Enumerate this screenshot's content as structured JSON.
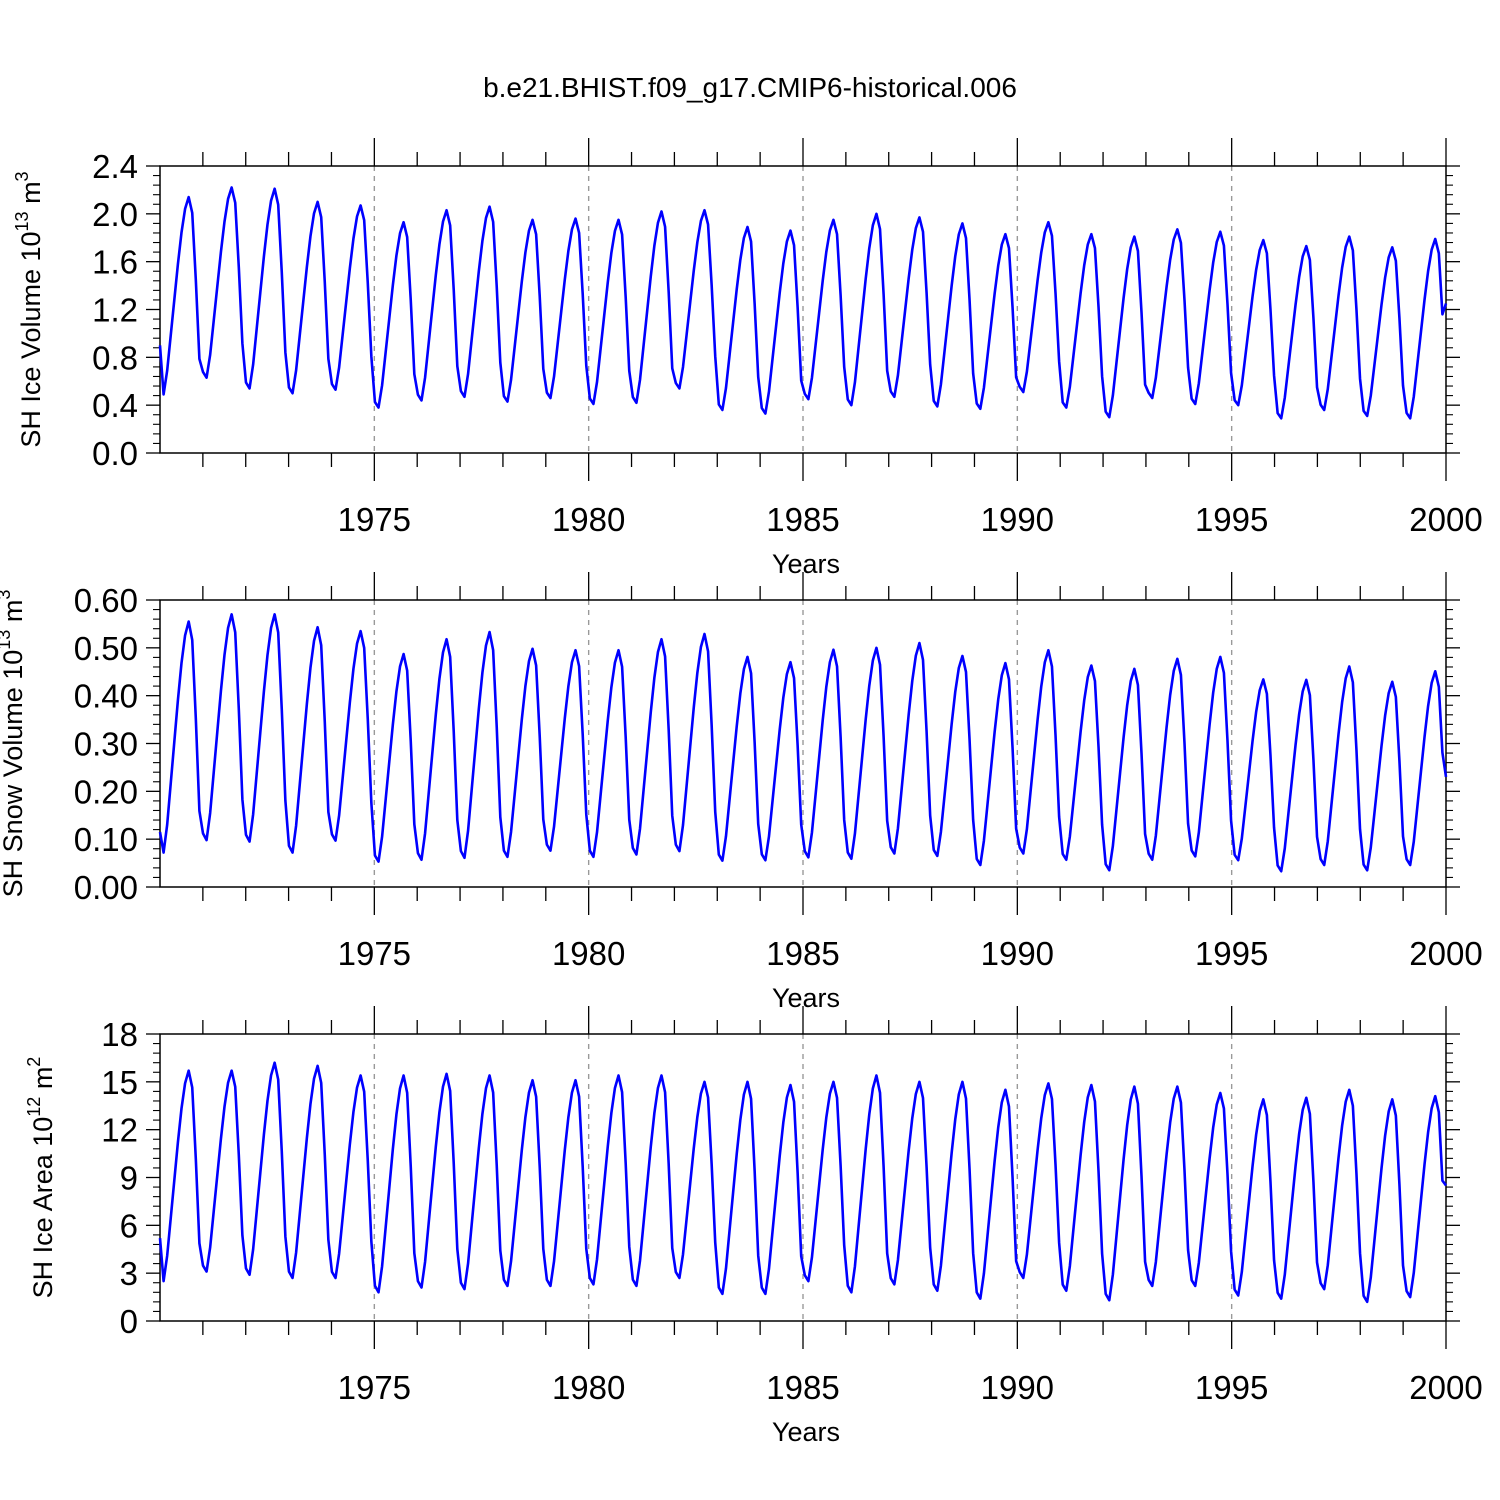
{
  "title": "b.e21.BHIST.f09_g17.CMIP6-historical.006",
  "colors": {
    "line": "#0000ff",
    "axis": "#000000",
    "grid": "#999999"
  },
  "chart_data": [
    {
      "type": "line",
      "title": "b.e21.BHIST.f09_g17.CMIP6-historical.006",
      "xlabel": "Years",
      "ylabel": "SH Ice Volume 10",
      "ylabel_sup": "13",
      "ylabel_unit": "m",
      "ylabel_unit_sup": "3",
      "xlim": [
        1970,
        2000
      ],
      "ylim": [
        0.0,
        2.4
      ],
      "yticks": [
        "0.0",
        "0.4",
        "0.8",
        "1.2",
        "1.6",
        "2.0",
        "2.4"
      ],
      "xticks": [
        "1975",
        "1980",
        "1985",
        "1990",
        "1995",
        "2000"
      ],
      "grid_x": [
        1975,
        1980,
        1985,
        1990,
        1995
      ],
      "series": [
        {
          "name": "SH Ice Volume",
          "first_month_value": 0.9,
          "last_month_value": 1.25,
          "annual_max": [
            2.14,
            2.22,
            2.21,
            2.1,
            2.07,
            1.93,
            2.03,
            2.06,
            1.95,
            1.96,
            1.95,
            2.02,
            2.03,
            1.89,
            1.86,
            1.95,
            2.0,
            1.97,
            1.92,
            1.83,
            1.93,
            1.83,
            1.81,
            1.87,
            1.85,
            1.78,
            1.73,
            1.81,
            1.72,
            1.79
          ],
          "annual_min": [
            0.49,
            0.63,
            0.54,
            0.5,
            0.53,
            0.38,
            0.44,
            0.47,
            0.43,
            0.46,
            0.41,
            0.42,
            0.54,
            0.36,
            0.33,
            0.45,
            0.4,
            0.47,
            0.39,
            0.37,
            0.51,
            0.38,
            0.3,
            0.46,
            0.41,
            0.4,
            0.29,
            0.36,
            0.31,
            0.29
          ]
        }
      ]
    },
    {
      "type": "line",
      "xlabel": "Years",
      "ylabel": "SH Snow Volume 10",
      "ylabel_sup": "13",
      "ylabel_unit": "m",
      "ylabel_unit_sup": "3",
      "xlim": [
        1970,
        2000
      ],
      "ylim": [
        0.0,
        0.6
      ],
      "yticks": [
        "0.00",
        "0.10",
        "0.20",
        "0.30",
        "0.40",
        "0.50",
        "0.60"
      ],
      "xticks": [
        "1975",
        "1980",
        "1985",
        "1990",
        "1995",
        "2000"
      ],
      "grid_x": [
        1975,
        1980,
        1985,
        1990,
        1995
      ],
      "series": [
        {
          "name": "SH Snow Volume",
          "first_month_value": 0.115,
          "last_month_value": 0.23,
          "annual_max": [
            0.555,
            0.57,
            0.57,
            0.543,
            0.535,
            0.487,
            0.518,
            0.533,
            0.498,
            0.495,
            0.495,
            0.518,
            0.529,
            0.481,
            0.47,
            0.496,
            0.5,
            0.51,
            0.483,
            0.468,
            0.495,
            0.463,
            0.456,
            0.477,
            0.481,
            0.434,
            0.433,
            0.461,
            0.429,
            0.451
          ],
          "annual_min": [
            0.072,
            0.098,
            0.095,
            0.072,
            0.097,
            0.053,
            0.057,
            0.061,
            0.063,
            0.076,
            0.063,
            0.068,
            0.075,
            0.055,
            0.056,
            0.062,
            0.059,
            0.07,
            0.065,
            0.046,
            0.07,
            0.057,
            0.035,
            0.057,
            0.064,
            0.056,
            0.033,
            0.046,
            0.035,
            0.046
          ]
        }
      ]
    },
    {
      "type": "line",
      "xlabel": "Years",
      "ylabel": "SH Ice Area 10",
      "ylabel_sup": "12",
      "ylabel_unit": "m",
      "ylabel_unit_sup": "2",
      "xlim": [
        1970,
        2000
      ],
      "ylim": [
        0,
        18
      ],
      "yticks": [
        "0",
        "3",
        "6",
        "9",
        "12",
        "15",
        "18"
      ],
      "xticks": [
        "1975",
        "1980",
        "1985",
        "1990",
        "1995",
        "2000"
      ],
      "grid_x": [
        1975,
        1980,
        1985,
        1990,
        1995
      ],
      "series": [
        {
          "name": "SH Ice Area",
          "first_month_value": 5.2,
          "last_month_value": 8.5,
          "annual_max": [
            15.7,
            15.7,
            16.2,
            16.0,
            15.4,
            15.4,
            15.5,
            15.4,
            15.1,
            15.1,
            15.4,
            15.4,
            15.0,
            15.0,
            14.8,
            15.0,
            15.4,
            15.0,
            15.0,
            14.5,
            14.9,
            14.8,
            14.7,
            14.7,
            14.3,
            13.9,
            14.0,
            14.5,
            13.9,
            14.1
          ],
          "annual_min": [
            2.5,
            3.1,
            2.9,
            2.7,
            2.7,
            1.8,
            2.1,
            2.0,
            2.2,
            2.2,
            2.3,
            2.2,
            2.7,
            1.7,
            1.7,
            2.5,
            1.8,
            2.3,
            1.9,
            1.4,
            2.7,
            1.9,
            1.3,
            2.2,
            2.2,
            1.6,
            1.4,
            2.0,
            1.2,
            1.5
          ]
        }
      ]
    }
  ]
}
